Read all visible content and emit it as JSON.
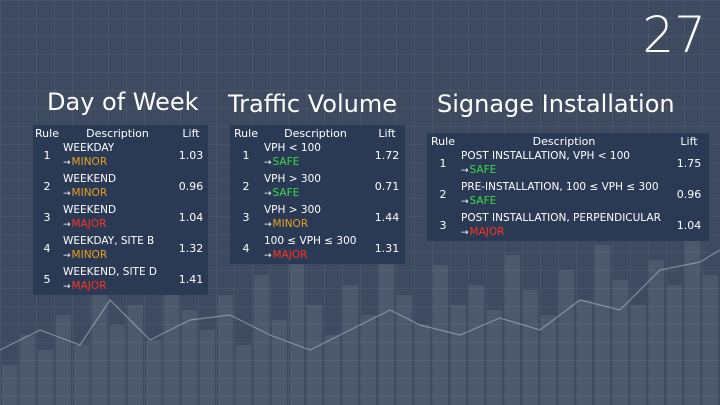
{
  "slide_number": "27",
  "colors": {
    "safe": "#3dd84b",
    "minor": "#e8a020",
    "major": "#ff3322",
    "table_bg": "#2a3a55",
    "slide_bg": "#3d4a60"
  },
  "tables": [
    {
      "title": "Day of Week",
      "headers": {
        "rule": "Rule",
        "description": "Description",
        "lift": "Lift"
      },
      "rows": [
        {
          "rule": "1",
          "condition": "WEEKDAY",
          "arrow": "→",
          "outcome": "MINOR",
          "level": "minor",
          "lift": "1.03"
        },
        {
          "rule": "2",
          "condition": "WEEKEND",
          "arrow": "→",
          "outcome": "MINOR",
          "level": "minor",
          "lift": "0.96"
        },
        {
          "rule": "3",
          "condition": "WEEKEND",
          "arrow": "→",
          "outcome": "MAJOR",
          "level": "major",
          "lift": "1.04"
        },
        {
          "rule": "4",
          "condition": "WEEKDAY, SITE B",
          "arrow": "→",
          "outcome": "MINOR",
          "level": "minor",
          "lift": "1.32"
        },
        {
          "rule": "5",
          "condition": "WEEKEND, SITE D",
          "arrow": "→",
          "outcome": "MAJOR",
          "level": "major",
          "lift": "1.41"
        }
      ]
    },
    {
      "title": "Traffic Volume",
      "headers": {
        "rule": "Rule",
        "description": "Description",
        "lift": "Lift"
      },
      "rows": [
        {
          "rule": "1",
          "condition": "VPH < 100",
          "arrow": "→",
          "outcome": "SAFE",
          "level": "safe",
          "lift": "1.72"
        },
        {
          "rule": "2",
          "condition": "VPH > 300",
          "arrow": "→",
          "outcome": "SAFE",
          "level": "safe",
          "lift": "0.71"
        },
        {
          "rule": "3",
          "condition": "VPH > 300",
          "arrow": "→",
          "outcome": "MINOR",
          "level": "minor",
          "lift": "1.44"
        },
        {
          "rule": "4",
          "condition": "100 ≤ VPH ≤ 300",
          "arrow": "→",
          "outcome": "MAJOR",
          "level": "major",
          "lift": "1.31"
        }
      ]
    },
    {
      "title": "Signage Installation",
      "headers": {
        "rule": "Rule",
        "description": "Description",
        "lift": "Lift"
      },
      "rows": [
        {
          "rule": "1",
          "condition": "POST INSTALLATION, VPH < 100",
          "arrow": "→",
          "outcome": "SAFE",
          "level": "safe",
          "lift": "1.75"
        },
        {
          "rule": "2",
          "condition": "PRE-INSTALLATION, 100 ≤ VPH ≤ 300",
          "arrow": "→",
          "outcome": "SAFE",
          "level": "safe",
          "lift": "0.96"
        },
        {
          "rule": "3",
          "condition": "POST INSTALLATION, PERPENDICULAR",
          "arrow": "→",
          "outcome": "MAJOR",
          "level": "major",
          "lift": "1.04"
        }
      ]
    }
  ]
}
